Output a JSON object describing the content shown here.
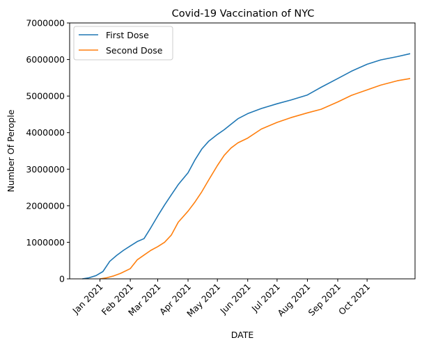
{
  "chart_data": {
    "type": "line",
    "title": "Covid-19 Vaccination of NYC",
    "xlabel": "DATE",
    "ylabel": "Number Of Perople",
    "ylim": [
      0,
      7000000
    ],
    "yticks": [
      0,
      1000000,
      2000000,
      3000000,
      4000000,
      5000000,
      6000000,
      7000000
    ],
    "ytick_labels": [
      "0",
      "1000000",
      "2000000",
      "3000000",
      "4000000",
      "5000000",
      "6000000",
      "7000000"
    ],
    "xlim": [
      "2020-12-01",
      "2021-11-19"
    ],
    "xticks": [
      "2021-01-01",
      "2021-02-01",
      "2021-03-01",
      "2021-04-01",
      "2021-05-01",
      "2021-06-01",
      "2021-07-01",
      "2021-08-01",
      "2021-09-01",
      "2021-10-01"
    ],
    "xtick_labels": [
      "Jan 2021",
      "Feb 2021",
      "Mar 2021",
      "Apr 2021",
      "May 2021",
      "Jun 2021",
      "Jul 2021",
      "Aug 2021",
      "Sep 2021",
      "Oct 2021"
    ],
    "grid": false,
    "legend_position": "top-left",
    "series": [
      {
        "name": "First Dose",
        "color": "#1f77b4",
        "points": [
          [
            "2020-12-14",
            0
          ],
          [
            "2020-12-21",
            30000
          ],
          [
            "2020-12-28",
            90000
          ],
          [
            "2021-01-04",
            200000
          ],
          [
            "2021-01-11",
            480000
          ],
          [
            "2021-01-18",
            640000
          ],
          [
            "2021-01-25",
            780000
          ],
          [
            "2021-02-01",
            900000
          ],
          [
            "2021-02-08",
            1020000
          ],
          [
            "2021-02-15",
            1100000
          ],
          [
            "2021-02-22",
            1400000
          ],
          [
            "2021-03-01",
            1720000
          ],
          [
            "2021-03-08",
            2020000
          ],
          [
            "2021-03-15",
            2300000
          ],
          [
            "2021-03-22",
            2580000
          ],
          [
            "2021-04-01",
            2900000
          ],
          [
            "2021-04-08",
            3250000
          ],
          [
            "2021-04-15",
            3550000
          ],
          [
            "2021-04-22",
            3760000
          ],
          [
            "2021-05-01",
            3950000
          ],
          [
            "2021-05-08",
            4080000
          ],
          [
            "2021-05-15",
            4230000
          ],
          [
            "2021-05-22",
            4380000
          ],
          [
            "2021-06-01",
            4520000
          ],
          [
            "2021-06-15",
            4660000
          ],
          [
            "2021-07-01",
            4790000
          ],
          [
            "2021-07-15",
            4890000
          ],
          [
            "2021-08-01",
            5030000
          ],
          [
            "2021-08-15",
            5240000
          ],
          [
            "2021-09-01",
            5480000
          ],
          [
            "2021-09-15",
            5680000
          ],
          [
            "2021-10-01",
            5870000
          ],
          [
            "2021-10-15",
            5990000
          ],
          [
            "2021-11-01",
            6080000
          ],
          [
            "2021-11-14",
            6160000
          ]
        ]
      },
      {
        "name": "Second Dose",
        "color": "#ff7f0e",
        "points": [
          [
            "2021-01-01",
            0
          ],
          [
            "2021-01-08",
            30000
          ],
          [
            "2021-01-15",
            80000
          ],
          [
            "2021-01-22",
            150000
          ],
          [
            "2021-02-01",
            280000
          ],
          [
            "2021-02-08",
            520000
          ],
          [
            "2021-02-15",
            650000
          ],
          [
            "2021-02-22",
            780000
          ],
          [
            "2021-03-01",
            880000
          ],
          [
            "2021-03-08",
            1000000
          ],
          [
            "2021-03-15",
            1200000
          ],
          [
            "2021-03-22",
            1550000
          ],
          [
            "2021-04-01",
            1850000
          ],
          [
            "2021-04-08",
            2100000
          ],
          [
            "2021-04-15",
            2380000
          ],
          [
            "2021-04-22",
            2700000
          ],
          [
            "2021-05-01",
            3100000
          ],
          [
            "2021-05-08",
            3380000
          ],
          [
            "2021-05-15",
            3580000
          ],
          [
            "2021-05-22",
            3720000
          ],
          [
            "2021-06-01",
            3850000
          ],
          [
            "2021-06-15",
            4100000
          ],
          [
            "2021-07-01",
            4280000
          ],
          [
            "2021-07-15",
            4410000
          ],
          [
            "2021-08-01",
            4540000
          ],
          [
            "2021-08-15",
            4640000
          ],
          [
            "2021-09-01",
            4840000
          ],
          [
            "2021-09-15",
            5020000
          ],
          [
            "2021-10-01",
            5170000
          ],
          [
            "2021-10-15",
            5300000
          ],
          [
            "2021-11-01",
            5420000
          ],
          [
            "2021-11-14",
            5480000
          ]
        ]
      }
    ]
  }
}
